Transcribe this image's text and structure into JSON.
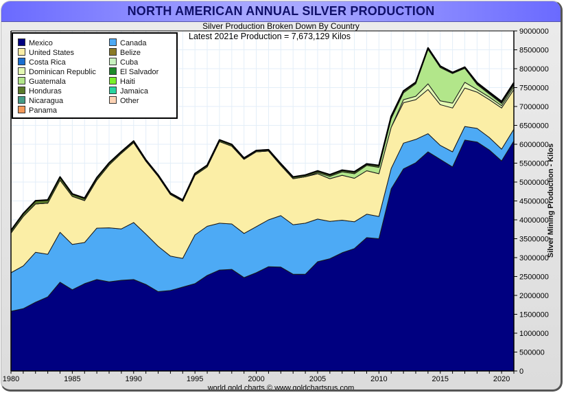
{
  "header": {
    "title": "NORTH AMERICAN ANNUAL SILVER PRODUCTION",
    "subtitle": "Silver Production Broken Down By Country",
    "annotation": "Latest 2021e Production = 7,673,129 Kilos",
    "footer": "world gold charts © www.goldchartsrus.com"
  },
  "chart_data": {
    "type": "area",
    "stacked": true,
    "title": "NORTH AMERICAN ANNUAL SILVER PRODUCTION",
    "subtitle": "Silver Production Broken Down By Country",
    "xlabel": "",
    "ylabel": "Silver Mining Production - Kilos",
    "xlim": [
      1980,
      2021
    ],
    "ylim": [
      0,
      9000000
    ],
    "x_ticks": [
      1980,
      1985,
      1990,
      1995,
      2000,
      2005,
      2010,
      2015,
      2020
    ],
    "y_ticks": [
      0,
      500000,
      1000000,
      1500000,
      2000000,
      2500000,
      3000000,
      3500000,
      4000000,
      4500000,
      5000000,
      5500000,
      6000000,
      6500000,
      7000000,
      7500000,
      8000000,
      8500000,
      9000000
    ],
    "grid": true,
    "legend_position": "top-left",
    "x": [
      1980,
      1981,
      1982,
      1983,
      1984,
      1985,
      1986,
      1987,
      1988,
      1989,
      1990,
      1991,
      1992,
      1993,
      1994,
      1995,
      1996,
      1997,
      1998,
      1999,
      2000,
      2001,
      2002,
      2003,
      2004,
      2005,
      2006,
      2007,
      2008,
      2009,
      2010,
      2011,
      2012,
      2013,
      2014,
      2015,
      2016,
      2017,
      2018,
      2019,
      2020,
      2021
    ],
    "series": [
      {
        "name": "Mexico",
        "color": "#000080",
        "values": [
          1580000,
          1650000,
          1820000,
          1960000,
          2350000,
          2150000,
          2310000,
          2420000,
          2360000,
          2400000,
          2420000,
          2290000,
          2100000,
          2130000,
          2220000,
          2310000,
          2530000,
          2670000,
          2690000,
          2470000,
          2600000,
          2760000,
          2750000,
          2560000,
          2560000,
          2890000,
          2970000,
          3130000,
          3240000,
          3530000,
          3500000,
          4820000,
          5350000,
          5510000,
          5800000,
          5600000,
          5400000,
          6110000,
          6060000,
          5850000,
          5560000,
          6090000
        ]
      },
      {
        "name": "Canada",
        "color": "#4daaf5",
        "values": [
          1020000,
          1130000,
          1320000,
          1130000,
          1320000,
          1200000,
          1090000,
          1360000,
          1430000,
          1360000,
          1510000,
          1330000,
          1200000,
          910000,
          760000,
          1290000,
          1300000,
          1240000,
          1200000,
          1170000,
          1220000,
          1240000,
          1360000,
          1310000,
          1350000,
          1130000,
          990000,
          860000,
          710000,
          620000,
          590000,
          540000,
          680000,
          620000,
          480000,
          370000,
          400000,
          360000,
          360000,
          330000,
          310000,
          310000
        ]
      },
      {
        "name": "United States",
        "color": "#fbeea6",
        "values": [
          1050000,
          1310000,
          1280000,
          1350000,
          1380000,
          1270000,
          1110000,
          1270000,
          1660000,
          2000000,
          2110000,
          1930000,
          1850000,
          1630000,
          1510000,
          1580000,
          1570000,
          2160000,
          2060000,
          1960000,
          1980000,
          1820000,
          1330000,
          1220000,
          1230000,
          1200000,
          1130000,
          1190000,
          1150000,
          1150000,
          1130000,
          1090000,
          1070000,
          1050000,
          1170000,
          1080000,
          1160000,
          1020000,
          960000,
          1000000,
          1090000,
          1050000
        ]
      },
      {
        "name": "Dominican Republic",
        "color": "#e4f9b4",
        "values": [
          0,
          0,
          0,
          0,
          0,
          0,
          0,
          0,
          0,
          0,
          0,
          0,
          0,
          0,
          0,
          0,
          0,
          0,
          0,
          0,
          0,
          0,
          0,
          0,
          0,
          0,
          0,
          0,
          0,
          0,
          0,
          0,
          80000,
          90000,
          150000,
          100000,
          130000,
          150000,
          70000,
          70000,
          60000,
          70000
        ]
      },
      {
        "name": "Guatemala",
        "color": "#b2e68a",
        "values": [
          0,
          0,
          0,
          0,
          0,
          0,
          0,
          0,
          0,
          0,
          0,
          0,
          0,
          0,
          0,
          0,
          0,
          0,
          0,
          0,
          0,
          0,
          0,
          0,
          0,
          30000,
          60000,
          90000,
          120000,
          140000,
          170000,
          230000,
          180000,
          330000,
          910000,
          880000,
          780000,
          370000,
          130000,
          80000,
          60000,
          50000
        ]
      },
      {
        "name": "Honduras",
        "color": "#5a7a2a",
        "values": [
          60000,
          70000,
          80000,
          80000,
          80000,
          60000,
          60000,
          60000,
          50000,
          40000,
          40000,
          30000,
          30000,
          30000,
          30000,
          40000,
          40000,
          40000,
          40000,
          30000,
          30000,
          30000,
          40000,
          40000,
          40000,
          40000,
          40000,
          40000,
          40000,
          30000,
          40000,
          50000,
          40000,
          30000,
          30000,
          30000,
          20000,
          20000,
          20000,
          20000,
          20000,
          20000
        ]
      },
      {
        "name": "Nicaragua",
        "color": "#449c88",
        "values": [
          10000,
          5000,
          5000,
          5000,
          5000,
          5000,
          5000,
          5000,
          5000,
          5000,
          5000,
          5000,
          5000,
          5000,
          5000,
          5000,
          5000,
          5000,
          5000,
          5000,
          5000,
          5000,
          5000,
          5000,
          5000,
          5000,
          5000,
          5000,
          10000,
          10000,
          10000,
          10000,
          10000,
          10000,
          10000,
          10000,
          10000,
          10000,
          10000,
          10000,
          10000,
          10000
        ]
      },
      {
        "name": "Panama",
        "color": "#f59a5a",
        "values": [
          0,
          0,
          0,
          0,
          0,
          0,
          0,
          0,
          0,
          0,
          0,
          0,
          0,
          0,
          0,
          0,
          0,
          0,
          0,
          0,
          0,
          0,
          0,
          0,
          0,
          0,
          0,
          0,
          0,
          0,
          0,
          0,
          0,
          0,
          0,
          0,
          0,
          0,
          20000,
          20000,
          20000,
          30000
        ]
      },
      {
        "name": "Canada-other: Costa Rica",
        "legend_only": true,
        "color": "#1a6ed0",
        "values": []
      }
    ],
    "legend": [
      {
        "name": "Mexico",
        "color": "#000080"
      },
      {
        "name": "Canada",
        "color": "#4daaf5"
      },
      {
        "name": "United States",
        "color": "#fbeea6"
      },
      {
        "name": "Belize",
        "color": "#8a7a26"
      },
      {
        "name": "Costa Rica",
        "color": "#1a6ed0"
      },
      {
        "name": "Cuba",
        "color": "#c8f2c0"
      },
      {
        "name": "Dominican Republic",
        "color": "#e4f9b4"
      },
      {
        "name": "El Salvador",
        "color": "#1d8a2a"
      },
      {
        "name": "Guatemala",
        "color": "#b2e68a"
      },
      {
        "name": "Haiti",
        "color": "#7af02a"
      },
      {
        "name": "Honduras",
        "color": "#5a7a2a"
      },
      {
        "name": "Jamaica",
        "color": "#28d4a0"
      },
      {
        "name": "Nicaragua",
        "color": "#449c88"
      },
      {
        "name": "Other",
        "color": "#fcd2b4"
      },
      {
        "name": "Panama",
        "color": "#f59a5a"
      }
    ]
  }
}
